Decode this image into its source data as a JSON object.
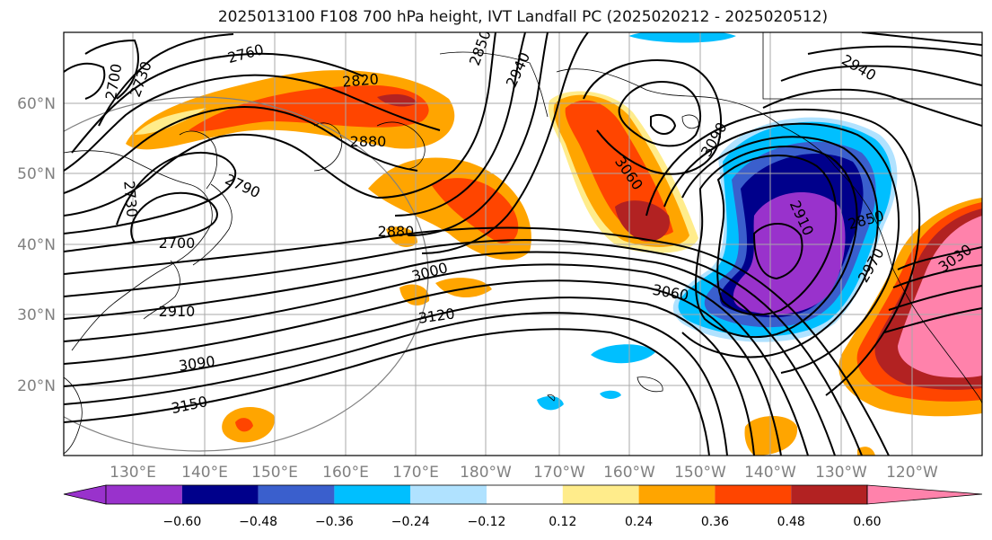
{
  "title": "2025013100 F108 700 hPa height, IVT Landfall PC (2025020212 - 2025020512)",
  "map": {
    "lon_labels": [
      "130°E",
      "140°E",
      "150°E",
      "160°E",
      "170°E",
      "180°W",
      "170°W",
      "160°W",
      "150°W",
      "140°W",
      "130°W",
      "120°W"
    ],
    "lat_labels": [
      "60°N",
      "50°N",
      "40°N",
      "30°N",
      "20°N"
    ],
    "contour_labels": [
      {
        "text": "2700"
      },
      {
        "text": "2730"
      },
      {
        "text": "2760"
      },
      {
        "text": "2820"
      },
      {
        "text": "2850"
      },
      {
        "text": "2940"
      },
      {
        "text": "2880"
      },
      {
        "text": "2790"
      },
      {
        "text": "2730"
      },
      {
        "text": "2700"
      },
      {
        "text": "2880"
      },
      {
        "text": "3060"
      },
      {
        "text": "3090"
      },
      {
        "text": "2940"
      },
      {
        "text": "2910"
      },
      {
        "text": "2850"
      },
      {
        "text": "2970"
      },
      {
        "text": "3030"
      },
      {
        "text": "3000"
      },
      {
        "text": "3060"
      },
      {
        "text": "3120"
      },
      {
        "text": "2910"
      },
      {
        "text": "3090"
      },
      {
        "text": "3150"
      }
    ]
  },
  "colorbar": {
    "tick_labels": [
      "−0.60",
      "−0.48",
      "−0.36",
      "−0.24",
      "−0.12",
      "0.12",
      "0.24",
      "0.36",
      "0.48",
      "0.60"
    ],
    "colors": [
      "#9932cc",
      "#00008b",
      "#3a5fcd",
      "#00bfff",
      "#b0e2ff",
      "#ffffff",
      "#ffec8b",
      "#ffa500",
      "#ff4500",
      "#b22222",
      "#ff82ab"
    ]
  }
}
